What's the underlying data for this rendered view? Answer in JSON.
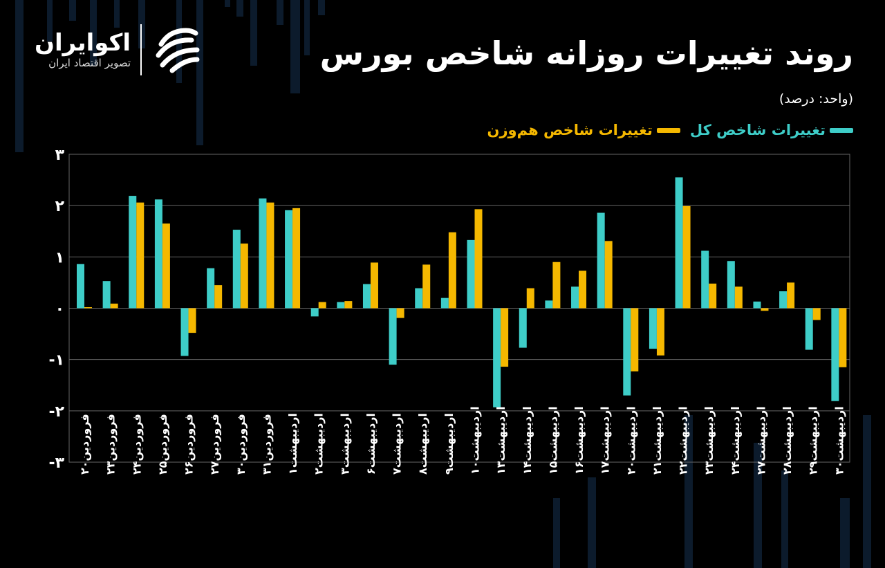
{
  "header": {
    "title": "روند تغییرات روزانه شاخص بورس",
    "unit": "(واحد: درصد)"
  },
  "logo": {
    "name": "اکوایران",
    "tagline": "تصویر اقتصاد ایران"
  },
  "legend": {
    "series_a": "تغییرات شاخص کل",
    "series_b": "تغییرات شاخص هم‌وزن"
  },
  "colors": {
    "series_a": "#3ecdc8",
    "series_b": "#f5b800",
    "grid": "#666666",
    "background": "#000000"
  },
  "chart_data": {
    "type": "bar",
    "ylim": [
      -3,
      3
    ],
    "yticks": [
      "-۳",
      "-۲",
      "-۱",
      "۰",
      "۱",
      "۲",
      "۳"
    ],
    "grid": true,
    "legend_position": "top-right",
    "categories": [
      "فروردین۲۰",
      "فروردین۲۳",
      "فروردین۲۴",
      "فروردین۲۵",
      "فروردین۲۶",
      "فروردین۲۷",
      "فروردین۳۰",
      "فروردین۳۱",
      "اردیبهشت۱",
      "اردیبهشت۲",
      "اردیبهشت۳",
      "اردیبهشت۶",
      "اردیبهشت۷",
      "اردیبهشت۸",
      "اردیبهشت۹",
      "اردیبهشت۱۰",
      "اردیبهشت۱۳",
      "اردیبهشت۱۴",
      "اردیبهشت۱۵",
      "اردیبهشت۱۶",
      "اردیبهشت۱۷",
      "اردیبهشت۲۰",
      "اردیبهشت۲۱",
      "اردیبهشت۲۲",
      "اردیبهشت۲۳",
      "اردیبهشت۲۴",
      "اردیبهشت۲۷",
      "اردیبهشت۲۸",
      "اردیبهشت۲۹",
      "اردیبهشت۳۰"
    ],
    "series": [
      {
        "name": "تغییرات شاخص کل",
        "values": [
          0.86,
          0.53,
          2.19,
          2.12,
          -0.93,
          0.78,
          1.53,
          2.14,
          1.91,
          -0.16,
          0.12,
          0.47,
          -1.1,
          0.39,
          0.2,
          1.33,
          -1.93,
          -0.77,
          0.15,
          0.42,
          1.86,
          -1.7,
          -0.79,
          2.55,
          1.12,
          0.92,
          0.13,
          0.33,
          -0.81,
          -1.81
        ]
      },
      {
        "name": "تغییرات شاخص هم‌وزن",
        "values": [
          0.02,
          0.09,
          2.06,
          1.65,
          -0.48,
          0.45,
          1.26,
          2.06,
          1.95,
          0.12,
          0.14,
          0.89,
          -0.19,
          0.85,
          1.48,
          1.93,
          -1.14,
          0.39,
          0.9,
          0.73,
          1.31,
          -1.23,
          -0.92,
          1.99,
          0.48,
          0.42,
          -0.05,
          0.5,
          -0.23,
          -1.15
        ]
      }
    ]
  }
}
